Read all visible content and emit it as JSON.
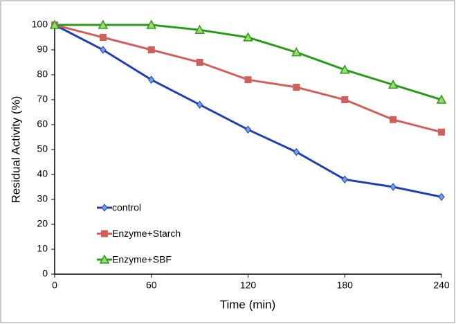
{
  "chart_data": {
    "type": "line",
    "x_label": "Time (min)",
    "y_label": "Residual Activity (%)",
    "x": [
      0,
      30,
      60,
      90,
      120,
      150,
      180,
      210,
      240
    ],
    "series": [
      {
        "name": "control",
        "color": "#1f3fb0",
        "marker": "diamond",
        "values": [
          100,
          90,
          78,
          68,
          58,
          49,
          38,
          35,
          31
        ]
      },
      {
        "name": "Enzyme+Starch",
        "color": "#d0605c",
        "marker": "square",
        "values": [
          100,
          95,
          90,
          85,
          78,
          75,
          70,
          62,
          57
        ]
      },
      {
        "name": "Enzyme+SBF",
        "color": "#2a9a1a",
        "marker": "triangle",
        "values": [
          100,
          100,
          100,
          98,
          95,
          89,
          82,
          76,
          70
        ]
      }
    ],
    "xlim": [
      0,
      240
    ],
    "xticks": [
      0,
      60,
      120,
      180,
      240
    ],
    "ylim": [
      0,
      100
    ],
    "yticks": [
      0,
      10,
      20,
      30,
      40,
      50,
      60,
      70,
      80,
      90,
      100
    ],
    "legend": "lower left"
  }
}
